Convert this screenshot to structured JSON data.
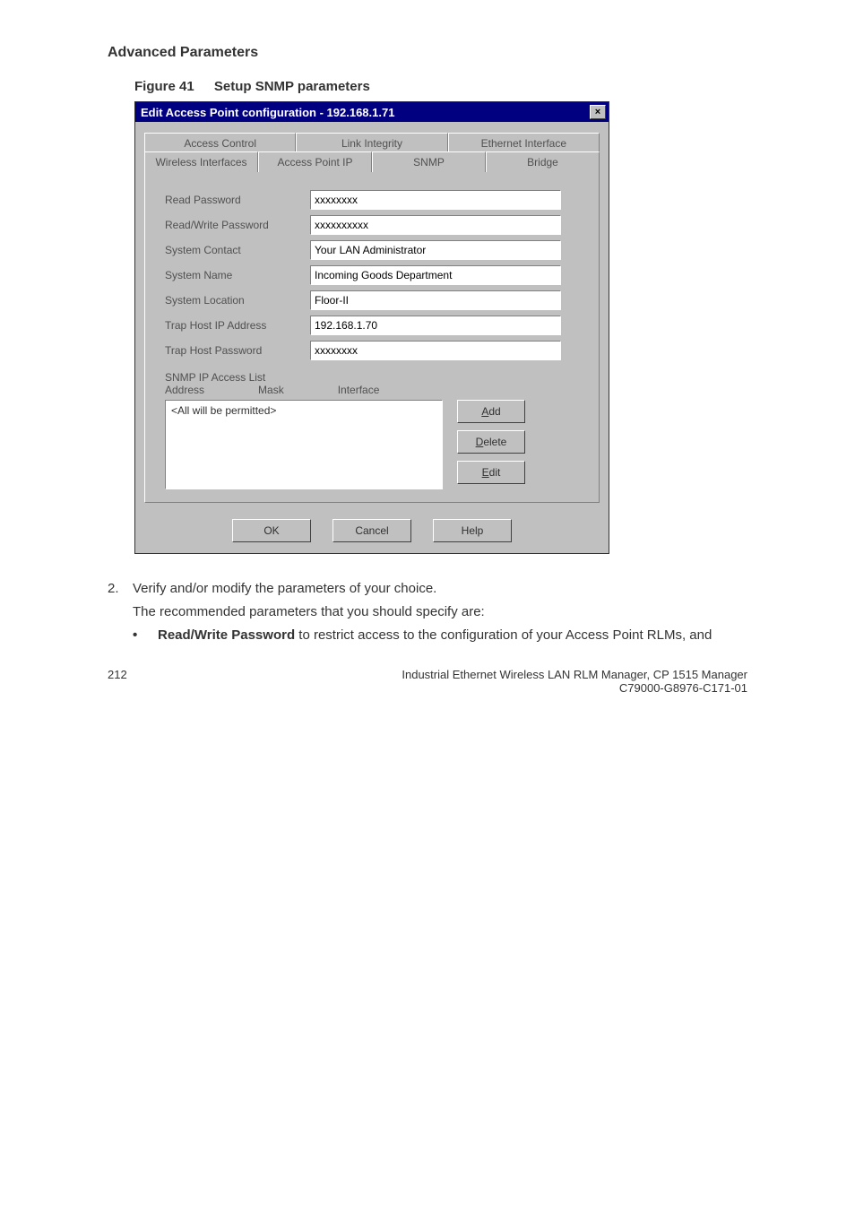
{
  "heading": "Advanced Parameters",
  "figure": {
    "label": "Figure 41",
    "title": "Setup SNMP parameters"
  },
  "dialog": {
    "title": "Edit Access Point configuration - 192.168.1.71",
    "close_glyph": "×",
    "tabs_back": [
      "Access Control",
      "Link Integrity",
      "Ethernet Interface"
    ],
    "tabs_front": [
      "Wireless Interfaces",
      "Access Point IP",
      "SNMP",
      "Bridge"
    ],
    "fields": {
      "read_password": {
        "label": "Read Password",
        "value": "xxxxxxxx"
      },
      "read_write_password": {
        "label": "Read/Write Password",
        "value": "xxxxxxxxxx"
      },
      "system_contact": {
        "label": "System Contact",
        "value": "Your LAN Administrator"
      },
      "system_name": {
        "label": "System Name",
        "value": "Incoming Goods Department"
      },
      "system_location": {
        "label": "System Location",
        "value": "Floor-II"
      },
      "trap_host_ip": {
        "label": "Trap Host IP Address",
        "value": "192.168.1.70"
      },
      "trap_host_password": {
        "label": "Trap Host Password",
        "value": "xxxxxxxx"
      }
    },
    "list": {
      "heading": "SNMP IP Access List",
      "col1": "Address",
      "col2": "Mask",
      "col3": "Interface",
      "item0": "<All will be permitted>"
    },
    "buttons": {
      "add_prefix": "A",
      "add_rest": "dd",
      "delete_prefix": "D",
      "delete_rest": "elete",
      "edit_prefix": "E",
      "edit_rest": "dit",
      "ok": "OK",
      "cancel": "Cancel",
      "help": "Help"
    }
  },
  "body": {
    "step_num": "2.",
    "step_text": "Verify and/or modify the parameters of your choice.",
    "step_sub": "The recommended parameters that you should specify are:",
    "bullet_bold": "Read/Write Password",
    "bullet_rest": " to restrict access to the configuration of your Access Point RLMs, and"
  },
  "footer": {
    "page": "212",
    "line1": "Industrial Ethernet Wireless LAN  RLM Manager,  CP 1515 Manager",
    "line2": "C79000-G8976-C171-01"
  }
}
